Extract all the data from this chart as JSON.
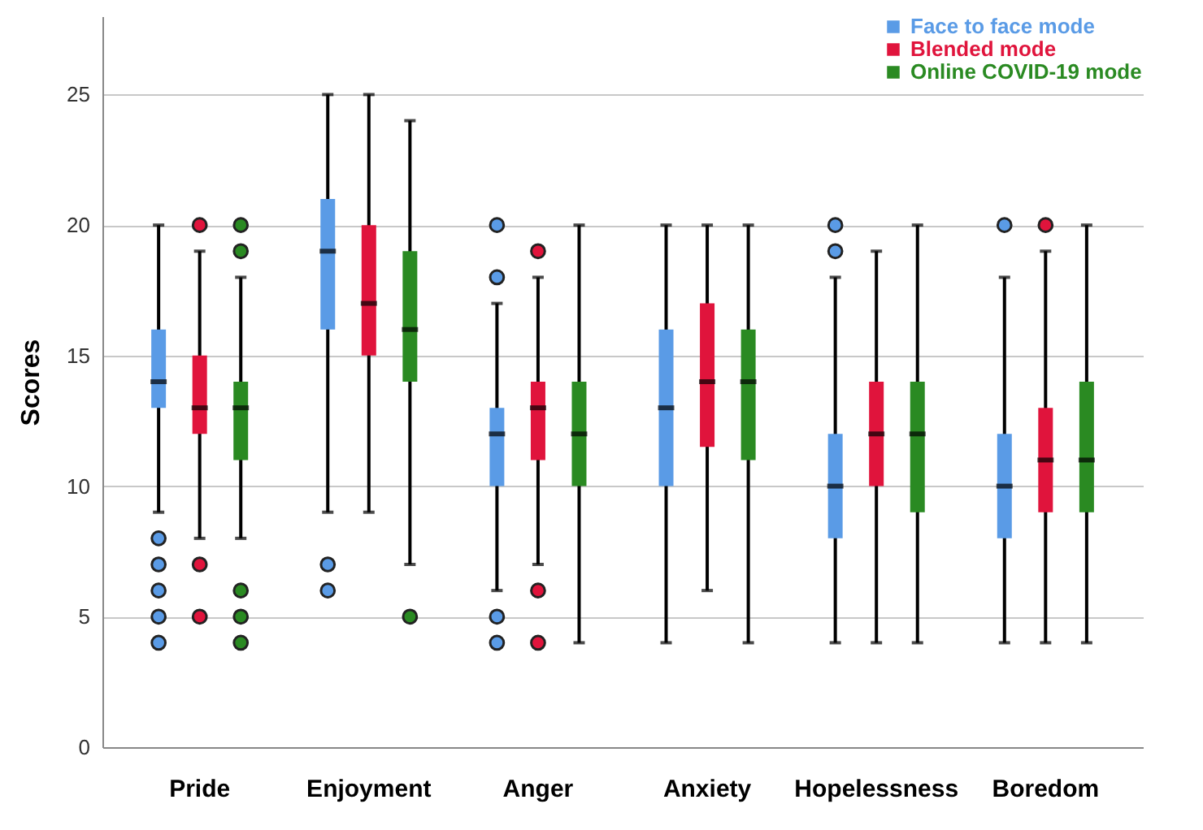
{
  "chart_data": {
    "type": "box",
    "ylabel": "Scores",
    "categories": [
      "Pride",
      "Enjoyment",
      "Anger",
      "Anxiety",
      "Hopelessness",
      "Boredom"
    ],
    "ylim": [
      0,
      28
    ],
    "yticks": [
      0,
      5,
      10,
      15,
      20,
      25
    ],
    "grid": "y",
    "legend": "top right",
    "series": [
      {
        "name": "Face to face mode",
        "color": "#5a9be6",
        "boxes": [
          {
            "low": 9,
            "q1": 13,
            "median": 14,
            "q3": 16,
            "high": 20,
            "outliers": [
              4,
              5,
              6,
              7,
              8
            ]
          },
          {
            "low": 9,
            "q1": 16,
            "median": 19,
            "q3": 21,
            "high": 25,
            "outliers": [
              6,
              7
            ]
          },
          {
            "low": 6,
            "q1": 10,
            "median": 12,
            "q3": 13,
            "high": 17,
            "outliers": [
              4,
              5,
              18,
              20
            ]
          },
          {
            "low": 4,
            "q1": 10,
            "median": 13,
            "q3": 16,
            "high": 20
          },
          {
            "low": 4,
            "q1": 8,
            "median": 10,
            "q3": 12,
            "high": 18,
            "outliers": [
              19,
              20
            ]
          },
          {
            "low": 4,
            "q1": 8,
            "median": 10,
            "q3": 12,
            "high": 18,
            "outliers": [
              20
            ]
          }
        ]
      },
      {
        "name": "Blended mode",
        "color": "#e0143c",
        "boxes": [
          {
            "low": 8,
            "q1": 12,
            "median": 13,
            "q3": 15,
            "high": 19,
            "outliers": [
              5,
              7,
              20
            ]
          },
          {
            "low": 9,
            "q1": 15,
            "median": 17,
            "q3": 20,
            "high": 25
          },
          {
            "low": 7,
            "q1": 11,
            "median": 13,
            "q3": 14,
            "high": 18,
            "outliers": [
              4,
              6,
              19
            ]
          },
          {
            "low": 6,
            "q1": 11.5,
            "median": 14,
            "q3": 17,
            "high": 20
          },
          {
            "low": 4,
            "q1": 10,
            "median": 12,
            "q3": 14,
            "high": 19
          },
          {
            "low": 4,
            "q1": 9,
            "median": 11,
            "q3": 13,
            "high": 19,
            "outliers": [
              20
            ]
          }
        ]
      },
      {
        "name": "Online COVID-19 mode",
        "color": "#2a8a22",
        "boxes": [
          {
            "low": 8,
            "q1": 11,
            "median": 13,
            "q3": 14,
            "high": 18,
            "outliers": [
              4,
              5,
              6,
              19,
              20
            ]
          },
          {
            "low": 7,
            "q1": 14,
            "median": 16,
            "q3": 19,
            "high": 24,
            "outliers": [
              5
            ]
          },
          {
            "low": 4,
            "q1": 10,
            "median": 12,
            "q3": 14,
            "high": 20
          },
          {
            "low": 4,
            "q1": 11,
            "median": 14,
            "q3": 16,
            "high": 20
          },
          {
            "low": 4,
            "q1": 9,
            "median": 12,
            "q3": 14,
            "high": 20
          },
          {
            "low": 4,
            "q1": 9,
            "median": 11,
            "q3": 14,
            "high": 20
          }
        ]
      }
    ]
  }
}
